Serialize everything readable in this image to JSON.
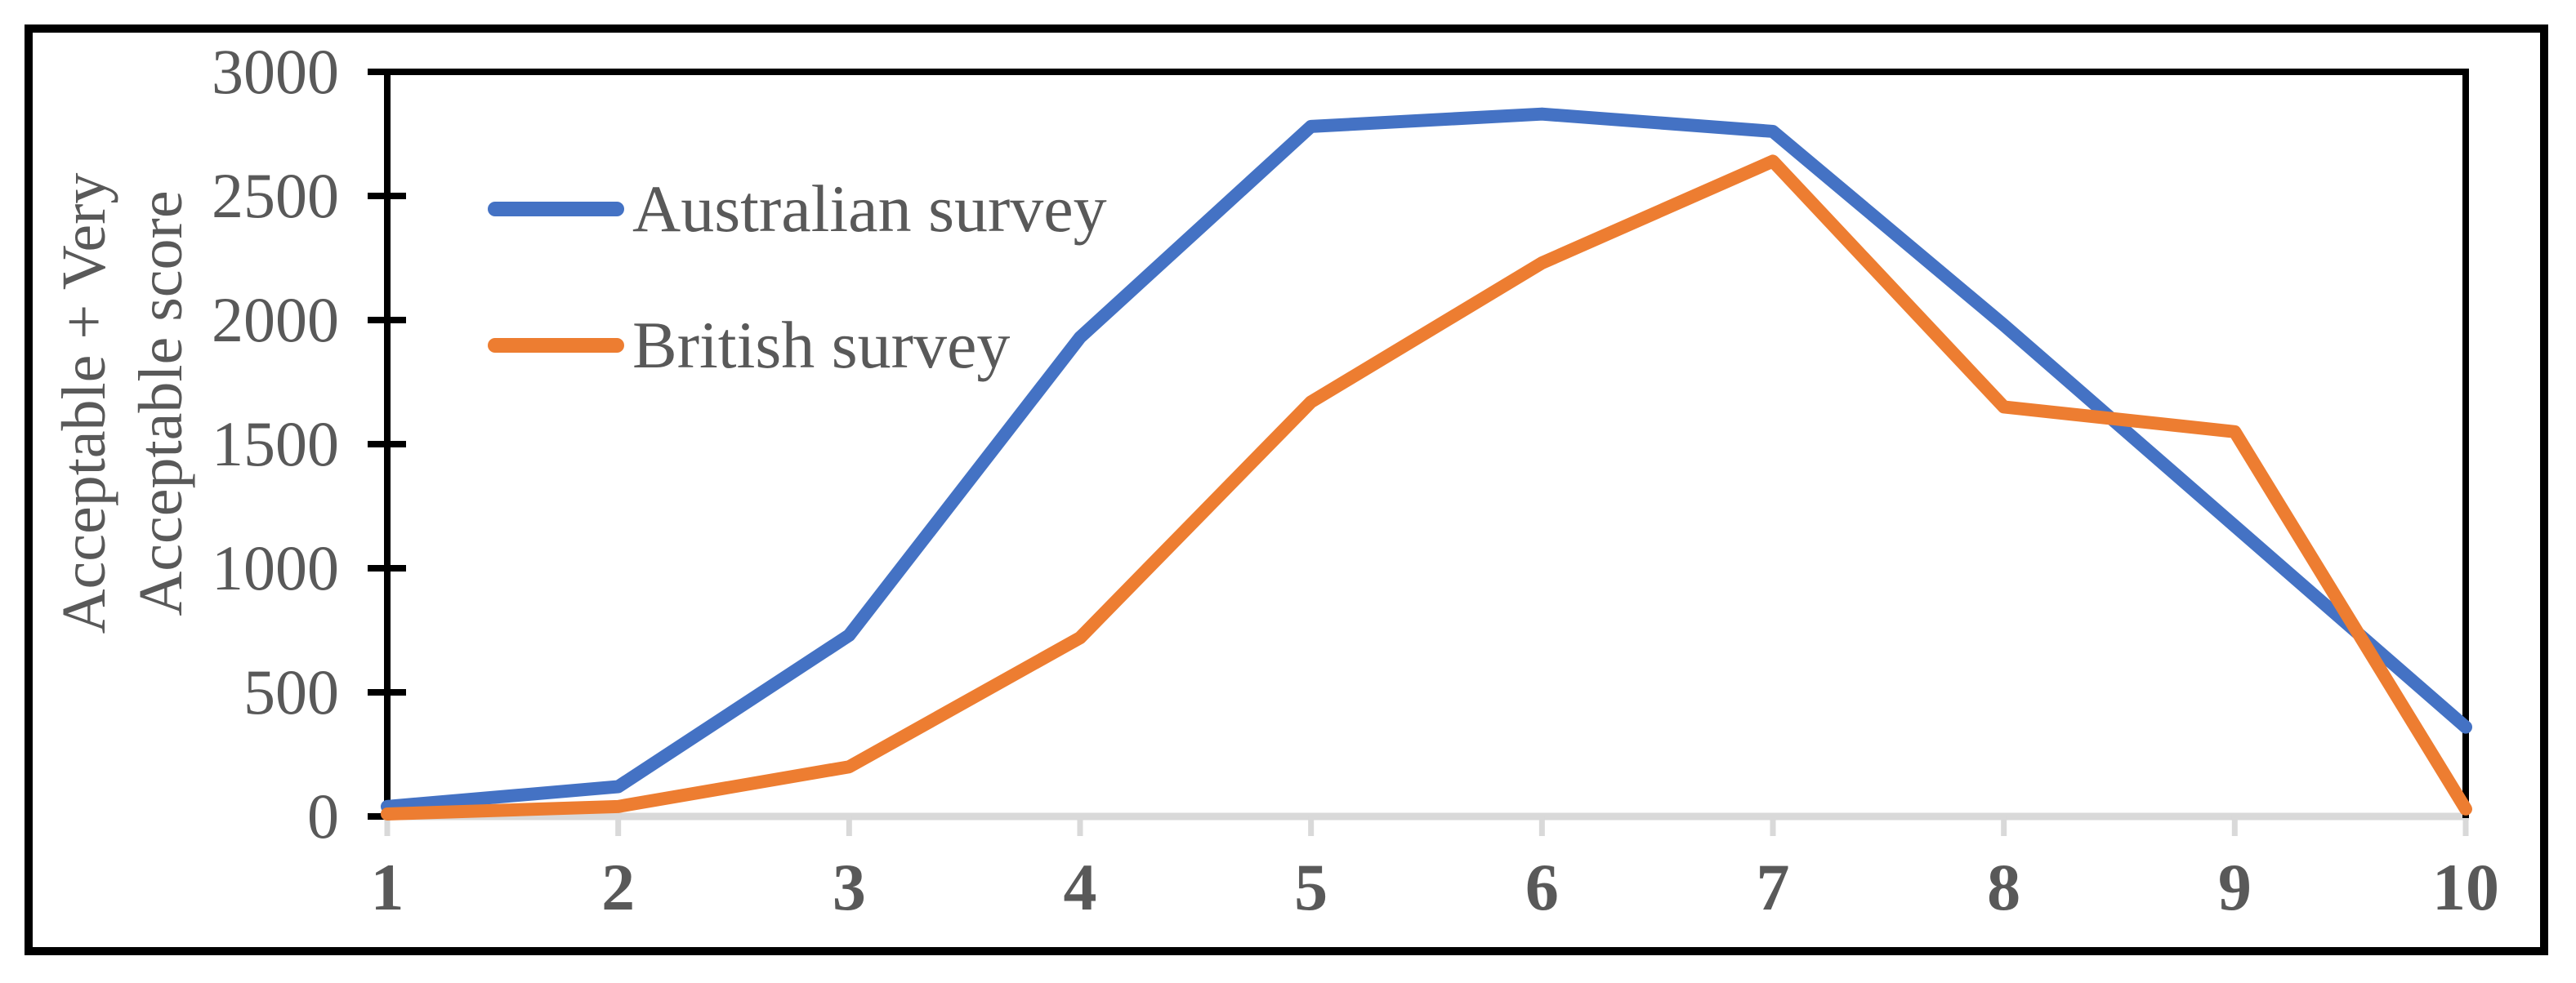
{
  "figure": {
    "background": "#FFFFFF",
    "border_color": "#000000"
  },
  "y_axis": {
    "title_lines": [
      "Acceptable + Very",
      "Acceptable score"
    ],
    "tick_labels": [
      "0",
      "500",
      "1000",
      "1500",
      "2000",
      "2500",
      "3000"
    ],
    "min": 0,
    "max": 3000,
    "step": 500,
    "line_color": "#000000",
    "text_color": "#595959"
  },
  "x_axis": {
    "tick_labels": [
      "1",
      "2",
      "3",
      "4",
      "5",
      "6",
      "7",
      "8",
      "9",
      "10"
    ],
    "line_color": "#D9D9D9",
    "text_color": "#595959"
  },
  "legend": {
    "items": [
      {
        "label": "Australian survey",
        "color": "#4472C4"
      },
      {
        "label": "British survey",
        "color": "#ED7D31"
      }
    ]
  },
  "chart_data": {
    "type": "line",
    "title": "",
    "xlabel": "",
    "ylabel": "Acceptable + Very Acceptable score",
    "ylabel_lines": [
      "Acceptable + Very",
      "Acceptable score"
    ],
    "x": [
      1,
      2,
      3,
      4,
      5,
      6,
      7,
      8,
      9,
      10
    ],
    "categories": [
      "1",
      "2",
      "3",
      "4",
      "5",
      "6",
      "7",
      "8",
      "9",
      "10"
    ],
    "series": [
      {
        "name": "Australian survey",
        "color": "#4472C4",
        "values": [
          40,
          120,
          730,
          1930,
          2780,
          2830,
          2760,
          1980,
          1170,
          360
        ]
      },
      {
        "name": "British survey",
        "color": "#ED7D31",
        "values": [
          10,
          40,
          200,
          720,
          1670,
          2230,
          2640,
          1650,
          1550,
          30
        ]
      }
    ],
    "ylim": [
      0,
      3000
    ],
    "yticks": [
      0,
      500,
      1000,
      1500,
      2000,
      2500,
      3000
    ],
    "grid": false,
    "legend_position": "top-left-inside",
    "line_width": 16,
    "axis_colors": {
      "category_axis": "#D9D9D9",
      "value_axis": "#000000",
      "tick_text": "#595959"
    }
  }
}
